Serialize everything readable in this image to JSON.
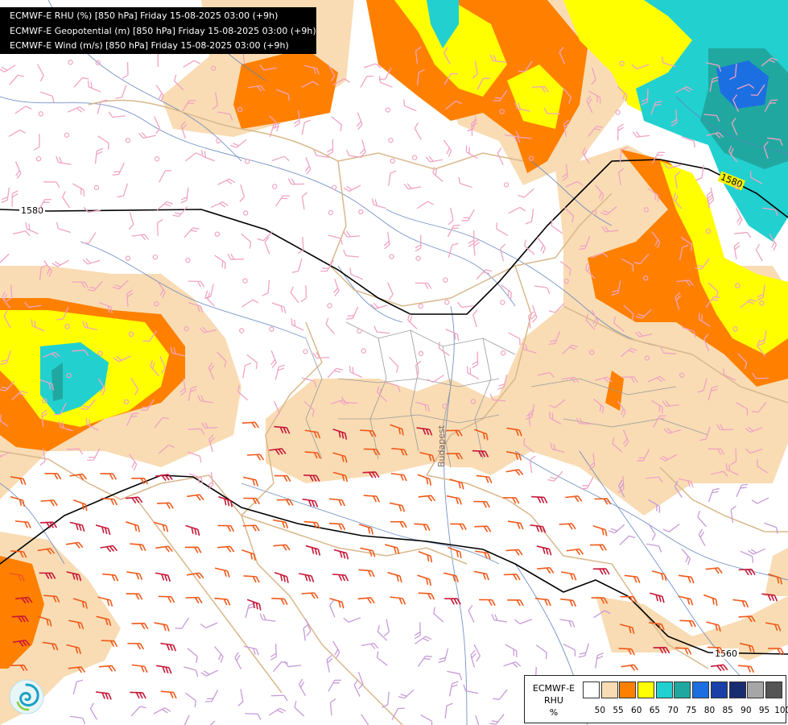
{
  "title_lines": [
    "ECMWF-E RHU (%) [850 hPa] Friday 15-08-2025 03:00 (+9h)",
    "ECMWF-E Geopotential (m) [850 hPa] Friday 15-08-2025 03:00 (+9h)",
    "ECMWF-E Wind (m/s) [850 hPa] Friday 15-08-2025 03:00 (+9h)"
  ],
  "legend": {
    "model": "ECMWF-E",
    "variable": "RHU",
    "unit": "%",
    "classes": [
      {
        "label": "50",
        "color": "#ffffff"
      },
      {
        "label": "55",
        "color": "#f9dcb4"
      },
      {
        "label": "60",
        "color": "#ff8000"
      },
      {
        "label": "65",
        "color": "#ffff00"
      },
      {
        "label": "70",
        "color": "#22d0d0"
      },
      {
        "label": "75",
        "color": "#20a8a0"
      },
      {
        "label": "80",
        "color": "#1c6fe0"
      },
      {
        "label": "85",
        "color": "#1a3fa8"
      },
      {
        "label": "90",
        "color": "#182c70"
      },
      {
        "label": "95",
        "color": "#a6a6a6"
      },
      {
        "label": "100",
        "color": "#555555"
      }
    ]
  },
  "contours": [
    {
      "label": "1580"
    },
    {
      "label": "1580"
    },
    {
      "label": "1560"
    }
  ],
  "map_labels": [
    "Budapest"
  ],
  "logo_icon": "swirl-logo-icon"
}
